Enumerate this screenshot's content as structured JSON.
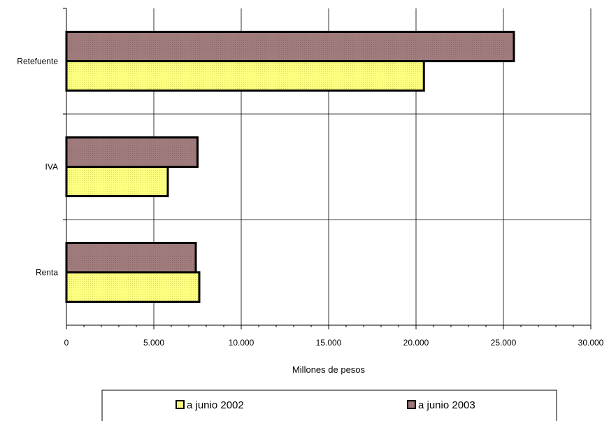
{
  "chart_data": {
    "type": "bar",
    "orientation": "horizontal",
    "categories": [
      "Retefuente",
      "IVA",
      "Renta"
    ],
    "series": [
      {
        "name": "a junio 2002",
        "values": [
          20450,
          5800,
          7600
        ],
        "color": "#ffff80"
      },
      {
        "name": "a junio 2003",
        "values": [
          25600,
          7500,
          7400
        ],
        "color": "#a07c7c"
      }
    ],
    "xlabel": "Millones de pesos",
    "xlim": [
      0,
      30000
    ],
    "x_ticks": [
      "0",
      "5.000",
      "10.000",
      "15.000",
      "20.000",
      "25.000",
      "30.000"
    ],
    "grid": true,
    "legend_position": "bottom"
  }
}
